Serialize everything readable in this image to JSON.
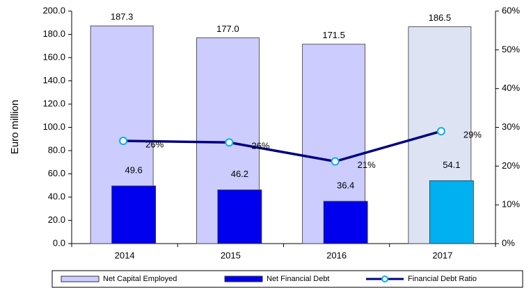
{
  "chart_data": {
    "type": "bar",
    "y_label": "Euro million",
    "categories": [
      "2014",
      "2015",
      "2016",
      "2017"
    ],
    "series": [
      {
        "name": "Net Capital Employed",
        "type": "bar",
        "color": "#ccccff",
        "colors": [
          "#ccccff",
          "#ccccff",
          "#ccccff",
          "#dde3f3"
        ],
        "values": [
          187.3,
          177.0,
          171.5,
          186.5
        ],
        "value_labels": [
          "187.3",
          "177.0",
          "171.5",
          "186.5"
        ]
      },
      {
        "name": "Net Financial Debt",
        "type": "bar",
        "color": "#0000ee",
        "colors": [
          "#0000ee",
          "#0000ee",
          "#0000ee",
          "#00b0f0"
        ],
        "values": [
          49.6,
          46.2,
          36.4,
          54.1
        ],
        "value_labels": [
          "49.6",
          "46.2",
          "36.4",
          "54.1"
        ]
      },
      {
        "name": "Financial Debt Ratio",
        "type": "line",
        "axis": "y2",
        "color": "#000080",
        "marker_color": "#00b0f0",
        "values": [
          26.5,
          26.1,
          21.2,
          29.0
        ],
        "value_labels": [
          "26%",
          "26%",
          "21%",
          "29%"
        ]
      }
    ],
    "ylim": [
      0,
      200
    ],
    "yticks": [
      {
        "value": 0,
        "label": "0.0"
      },
      {
        "value": 20,
        "label": "20.0"
      },
      {
        "value": 40,
        "label": "40.0"
      },
      {
        "value": 60,
        "label": "60.0"
      },
      {
        "value": 80,
        "label": "80.0"
      },
      {
        "value": 100,
        "label": "100.0"
      },
      {
        "value": 120,
        "label": "120.0"
      },
      {
        "value": 140,
        "label": "140.0"
      },
      {
        "value": 160,
        "label": "160.0"
      },
      {
        "value": 180,
        "label": "180.0"
      },
      {
        "value": 200,
        "label": "200.0"
      }
    ],
    "y2lim": [
      0,
      60
    ],
    "y2ticks": [
      {
        "value": 0,
        "label": "0%"
      },
      {
        "value": 10,
        "label": "10%"
      },
      {
        "value": 20,
        "label": "20%"
      },
      {
        "value": 30,
        "label": "30%"
      },
      {
        "value": 40,
        "label": "40%"
      },
      {
        "value": 50,
        "label": "50%"
      },
      {
        "value": 60,
        "label": "60%"
      }
    ],
    "legend": "bottom"
  }
}
